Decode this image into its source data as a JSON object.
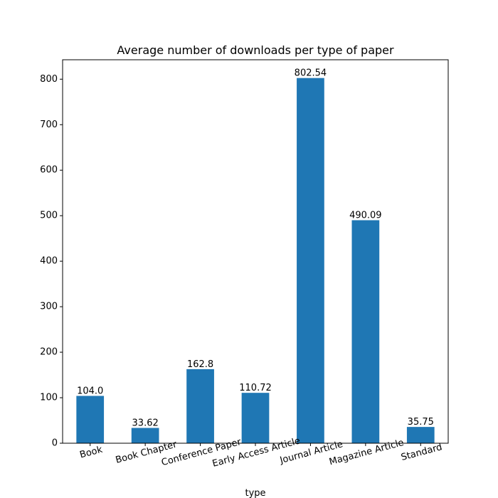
{
  "chart_data": {
    "type": "bar",
    "title": "Average number of downloads per type of paper",
    "xlabel": "type",
    "ylabel": "",
    "categories": [
      "Book",
      "Book Chapter",
      "Conference Paper",
      "Early Access Article",
      "Journal Article",
      "Magazine Article",
      "Standard"
    ],
    "values": [
      104.0,
      33.62,
      162.8,
      110.72,
      802.54,
      490.09,
      35.75
    ],
    "value_labels": [
      "104.0",
      "33.62",
      "162.8",
      "110.72",
      "802.54",
      "490.09",
      "35.75"
    ],
    "ylim": [
      0,
      842.67
    ],
    "yticks": [
      0,
      100,
      200,
      300,
      400,
      500,
      600,
      700,
      800
    ],
    "grid": false,
    "legend": "none",
    "bar_color": "#1f77b4",
    "xtick_rotation_deg": 15
  }
}
